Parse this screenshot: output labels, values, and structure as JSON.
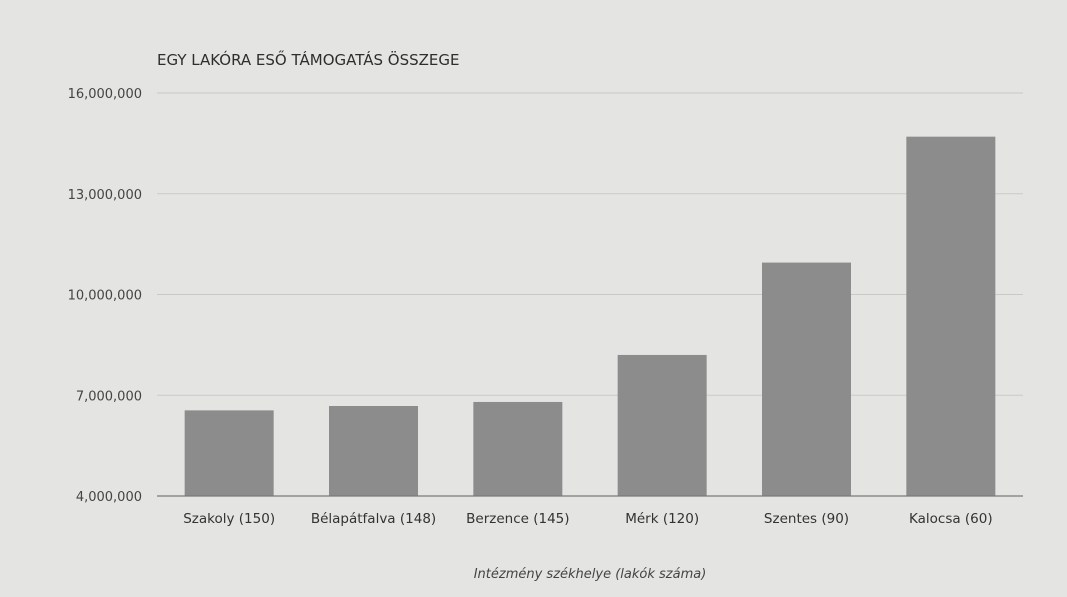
{
  "chart_data": {
    "type": "bar",
    "title": "EGY LAKÓRA ESŐ TÁMOGATÁS ÖSSZEGE",
    "xlabel": "Intézmény székhelye (lakók száma)",
    "ylabel": "",
    "categories": [
      "Szakoly (150)",
      "Bélapátfalva (148)",
      "Berzence (145)",
      "Mérk (120)",
      "Szentes (90)",
      "Kalocsa (60)"
    ],
    "values": [
      6550000,
      6680000,
      6800000,
      8200000,
      10950000,
      14700000
    ],
    "ylim": [
      4000000,
      16000000
    ],
    "yticks": [
      4000000,
      7000000,
      10000000,
      13000000,
      16000000
    ],
    "ytick_labels": [
      "4,000,000",
      "7,000,000",
      "10,000,000",
      "13,000,000",
      "16,000,000"
    ],
    "grid": true,
    "bar_color": "#8c8c8c"
  }
}
